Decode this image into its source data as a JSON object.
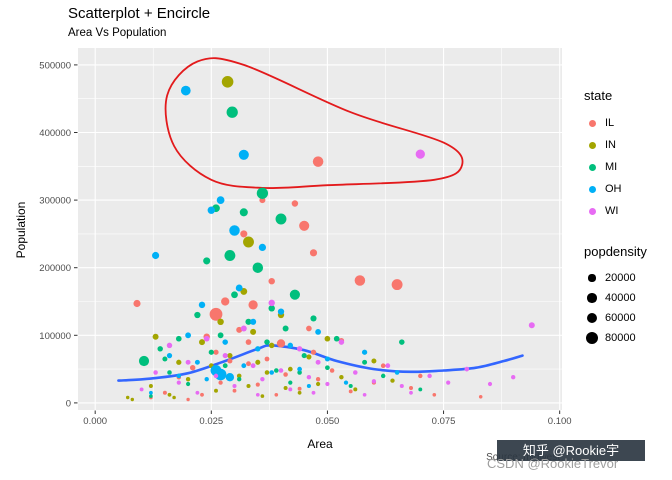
{
  "watermarks": {
    "badge": "知乎 @Rookie宇",
    "text": "CSDN @RookieTrevor"
  },
  "chart_data": {
    "type": "scatter",
    "title": "Scatterplot + Encircle",
    "subtitle": "Area Vs Population",
    "caption": "Source: midwest",
    "xlabel": "Area",
    "ylabel": "Population",
    "xlim": [
      -0.0037,
      0.1005
    ],
    "ylim": [
      -10500,
      525000
    ],
    "xticks": [
      0,
      0.025,
      0.05,
      0.075,
      0.1
    ],
    "xtick_labels": [
      "0.000",
      "0.025",
      "0.050",
      "0.075",
      "0.100"
    ],
    "yticks": [
      0,
      100000,
      200000,
      300000,
      400000,
      500000
    ],
    "ytick_labels": [
      "0",
      "100000",
      "200000",
      "300000",
      "400000",
      "500000"
    ],
    "panel_bg": "#EBEBEB",
    "grid_color": "#FFFFFF",
    "grid": true,
    "legend_position": "right",
    "legend": {
      "state_title": "state",
      "popdensity_title": "popdensity",
      "sizes": [
        20000,
        40000,
        60000,
        80000
      ]
    },
    "encircle": {
      "color": "#E31A1C",
      "points": [
        [
          0.0155,
          455000
        ],
        [
          0.022,
          505000
        ],
        [
          0.032,
          500000
        ],
        [
          0.055,
          430000
        ],
        [
          0.075,
          385000
        ],
        [
          0.079,
          352000
        ],
        [
          0.073,
          330000
        ],
        [
          0.05,
          322000
        ],
        [
          0.036,
          318000
        ],
        [
          0.025,
          330000
        ],
        [
          0.017,
          380000
        ]
      ]
    },
    "smooth_line": {
      "color": "#3366FF",
      "points": [
        [
          0.005,
          33000
        ],
        [
          0.012,
          36000
        ],
        [
          0.02,
          44000
        ],
        [
          0.028,
          62000
        ],
        [
          0.035,
          80000
        ],
        [
          0.038,
          85000
        ],
        [
          0.045,
          78000
        ],
        [
          0.052,
          62000
        ],
        [
          0.06,
          50000
        ],
        [
          0.068,
          46000
        ],
        [
          0.075,
          48000
        ],
        [
          0.082,
          52000
        ],
        [
          0.088,
          62000
        ],
        [
          0.092,
          70000
        ]
      ]
    },
    "series": [
      {
        "name": "IL",
        "color": "#F8766D",
        "points": [
          [
            0.012,
            8000,
            2000
          ],
          [
            0.015,
            15000,
            3000
          ],
          [
            0.018,
            38000,
            5000
          ],
          [
            0.02,
            5000,
            1500
          ],
          [
            0.021,
            52000,
            9000
          ],
          [
            0.023,
            12000,
            2500
          ],
          [
            0.024,
            98000,
            15000
          ],
          [
            0.026,
            131000,
            88000
          ],
          [
            0.026,
            75000,
            8000
          ],
          [
            0.027,
            30000,
            4000
          ],
          [
            0.028,
            150000,
            30000
          ],
          [
            0.029,
            62000,
            7000
          ],
          [
            0.03,
            18000,
            2500
          ],
          [
            0.031,
            108000,
            12000
          ],
          [
            0.032,
            250000,
            20000
          ],
          [
            0.033,
            90000,
            10000
          ],
          [
            0.033,
            58000,
            6000
          ],
          [
            0.034,
            145000,
            40000
          ],
          [
            0.035,
            27000,
            3500
          ],
          [
            0.036,
            300000,
            12000
          ],
          [
            0.037,
            65000,
            6000
          ],
          [
            0.038,
            180000,
            15000
          ],
          [
            0.039,
            12000,
            2000
          ],
          [
            0.04,
            88000,
            30000
          ],
          [
            0.041,
            42000,
            5000
          ],
          [
            0.043,
            295000,
            15000
          ],
          [
            0.044,
            21000,
            2800
          ],
          [
            0.045,
            262000,
            50000
          ],
          [
            0.046,
            110000,
            10000
          ],
          [
            0.047,
            222000,
            20000
          ],
          [
            0.047,
            75000,
            8000
          ],
          [
            0.048,
            35000,
            4200
          ],
          [
            0.048,
            357000,
            55000
          ],
          [
            0.051,
            48000,
            5000
          ],
          [
            0.053,
            92000,
            9000
          ],
          [
            0.055,
            17000,
            2600
          ],
          [
            0.057,
            181000,
            55000
          ],
          [
            0.06,
            30000,
            3400
          ],
          [
            0.062,
            55000,
            5200
          ],
          [
            0.065,
            175000,
            60000
          ],
          [
            0.068,
            22000,
            3000
          ],
          [
            0.07,
            40000,
            4500
          ],
          [
            0.073,
            12000,
            2000
          ],
          [
            0.083,
            9000,
            1800
          ],
          [
            0.009,
            147000,
            20000
          ]
        ]
      },
      {
        "name": "IN",
        "color": "#A3A500",
        "points": [
          [
            0.007,
            8000,
            1600
          ],
          [
            0.008,
            5000,
            1500
          ],
          [
            0.012,
            25000,
            3000
          ],
          [
            0.013,
            98000,
            12000
          ],
          [
            0.016,
            12000,
            2500
          ],
          [
            0.017,
            8000,
            1800
          ],
          [
            0.018,
            60000,
            8000
          ],
          [
            0.02,
            35000,
            4500
          ],
          [
            0.023,
            90000,
            12000
          ],
          [
            0.025,
            55000,
            6000
          ],
          [
            0.026,
            18000,
            2800
          ],
          [
            0.027,
            120000,
            15000
          ],
          [
            0.0285,
            475000,
            70000
          ],
          [
            0.029,
            70000,
            8000
          ],
          [
            0.031,
            40000,
            5000
          ],
          [
            0.032,
            165000,
            18000
          ],
          [
            0.033,
            238000,
            60000
          ],
          [
            0.033,
            25000,
            3200
          ],
          [
            0.034,
            105000,
            12000
          ],
          [
            0.035,
            60000,
            7000
          ],
          [
            0.036,
            10000,
            2000
          ],
          [
            0.037,
            45000,
            5000
          ],
          [
            0.038,
            85000,
            9000
          ],
          [
            0.04,
            130000,
            14000
          ],
          [
            0.041,
            22000,
            3000
          ],
          [
            0.042,
            50000,
            5500
          ],
          [
            0.044,
            15000,
            2400
          ],
          [
            0.046,
            68000,
            7500
          ],
          [
            0.048,
            28000,
            3600
          ],
          [
            0.05,
            95000,
            10000
          ],
          [
            0.053,
            38000,
            4400
          ],
          [
            0.056,
            20000,
            3000
          ],
          [
            0.06,
            62000,
            6800
          ],
          [
            0.064,
            33000,
            4000
          ]
        ]
      },
      {
        "name": "MI",
        "color": "#00BF7D",
        "points": [
          [
            0.0105,
            62000,
            50000
          ],
          [
            0.012,
            10000,
            2000
          ],
          [
            0.014,
            80000,
            9000
          ],
          [
            0.015,
            65000,
            7000
          ],
          [
            0.016,
            45000,
            5000
          ],
          [
            0.018,
            95000,
            10000
          ],
          [
            0.02,
            28000,
            3500
          ],
          [
            0.022,
            130000,
            14000
          ],
          [
            0.024,
            210000,
            20000
          ],
          [
            0.025,
            75000,
            8000
          ],
          [
            0.026,
            288000,
            25000
          ],
          [
            0.027,
            100000,
            11000
          ],
          [
            0.028,
            55000,
            6000
          ],
          [
            0.029,
            218000,
            60000
          ],
          [
            0.0295,
            430000,
            65000
          ],
          [
            0.03,
            160000,
            17000
          ],
          [
            0.031,
            35000,
            4200
          ],
          [
            0.032,
            282000,
            28000
          ],
          [
            0.033,
            120000,
            13000
          ],
          [
            0.035,
            200000,
            55000
          ],
          [
            0.036,
            310000,
            65000
          ],
          [
            0.037,
            90000,
            9500
          ],
          [
            0.038,
            140000,
            15000
          ],
          [
            0.039,
            48000,
            5200
          ],
          [
            0.04,
            272000,
            60000
          ],
          [
            0.041,
            110000,
            12000
          ],
          [
            0.042,
            30000,
            3800
          ],
          [
            0.043,
            160000,
            50000
          ],
          [
            0.044,
            45000,
            5000
          ],
          [
            0.045,
            70000,
            7500
          ],
          [
            0.047,
            125000,
            13000
          ],
          [
            0.05,
            52000,
            5600
          ],
          [
            0.052,
            95000,
            10000
          ],
          [
            0.055,
            25000,
            3200
          ],
          [
            0.058,
            60000,
            6500
          ],
          [
            0.062,
            40000,
            4600
          ],
          [
            0.066,
            90000,
            9500
          ],
          [
            0.07,
            20000,
            2800
          ]
        ]
      },
      {
        "name": "OH",
        "color": "#00B0F6",
        "points": [
          [
            0.012,
            15000,
            2400
          ],
          [
            0.013,
            218000,
            20000
          ],
          [
            0.016,
            70000,
            8000
          ],
          [
            0.018,
            40000,
            5000
          ],
          [
            0.0195,
            462000,
            45000
          ],
          [
            0.02,
            100000,
            11000
          ],
          [
            0.022,
            60000,
            6500
          ],
          [
            0.023,
            145000,
            15000
          ],
          [
            0.024,
            35000,
            4200
          ],
          [
            0.025,
            285000,
            22000
          ],
          [
            0.026,
            48000,
            60000
          ],
          [
            0.027,
            300000,
            25000
          ],
          [
            0.027,
            42000,
            70000
          ],
          [
            0.028,
            90000,
            9500
          ],
          [
            0.029,
            38000,
            30000
          ],
          [
            0.03,
            255000,
            55000
          ],
          [
            0.031,
            170000,
            18000
          ],
          [
            0.032,
            367000,
            50000
          ],
          [
            0.032,
            55000,
            6000
          ],
          [
            0.034,
            120000,
            13000
          ],
          [
            0.035,
            80000,
            8500
          ],
          [
            0.036,
            230000,
            21000
          ],
          [
            0.038,
            45000,
            5000
          ],
          [
            0.04,
            135000,
            14000
          ],
          [
            0.042,
            85000,
            9000
          ],
          [
            0.044,
            50000,
            5500
          ],
          [
            0.046,
            25000,
            3300
          ],
          [
            0.048,
            105000,
            11000
          ],
          [
            0.05,
            65000,
            7000
          ],
          [
            0.054,
            30000,
            3800
          ],
          [
            0.058,
            75000,
            8000
          ],
          [
            0.065,
            45000,
            5000
          ]
        ]
      },
      {
        "name": "WI",
        "color": "#E76BF3",
        "points": [
          [
            0.01,
            20000,
            2800
          ],
          [
            0.013,
            45000,
            5000
          ],
          [
            0.016,
            85000,
            9000
          ],
          [
            0.018,
            30000,
            3800
          ],
          [
            0.02,
            60000,
            6500
          ],
          [
            0.022,
            15000,
            2500
          ],
          [
            0.024,
            95000,
            10000
          ],
          [
            0.026,
            40000,
            4600
          ],
          [
            0.028,
            70000,
            7500
          ],
          [
            0.03,
            25000,
            3300
          ],
          [
            0.032,
            110000,
            12000
          ],
          [
            0.034,
            55000,
            6000
          ],
          [
            0.035,
            12000,
            2200
          ],
          [
            0.036,
            35000,
            4200
          ],
          [
            0.038,
            148000,
            15000
          ],
          [
            0.04,
            48000,
            5200
          ],
          [
            0.042,
            20000,
            2900
          ],
          [
            0.044,
            80000,
            8500
          ],
          [
            0.046,
            38000,
            4400
          ],
          [
            0.047,
            15000,
            2500
          ],
          [
            0.048,
            60000,
            6500
          ],
          [
            0.05,
            28000,
            3500
          ],
          [
            0.053,
            90000,
            9500
          ],
          [
            0.056,
            45000,
            5000
          ],
          [
            0.058,
            12000,
            2200
          ],
          [
            0.06,
            32000,
            3900
          ],
          [
            0.063,
            55000,
            6000
          ],
          [
            0.066,
            25000,
            3200
          ],
          [
            0.068,
            15000,
            2400
          ],
          [
            0.07,
            368000,
            40000
          ],
          [
            0.072,
            40000,
            4600
          ],
          [
            0.076,
            30000,
            3700
          ],
          [
            0.08,
            50000,
            5400
          ],
          [
            0.085,
            28000,
            3500
          ],
          [
            0.09,
            38000,
            4300
          ],
          [
            0.094,
            115000,
            12000
          ]
        ]
      }
    ]
  }
}
